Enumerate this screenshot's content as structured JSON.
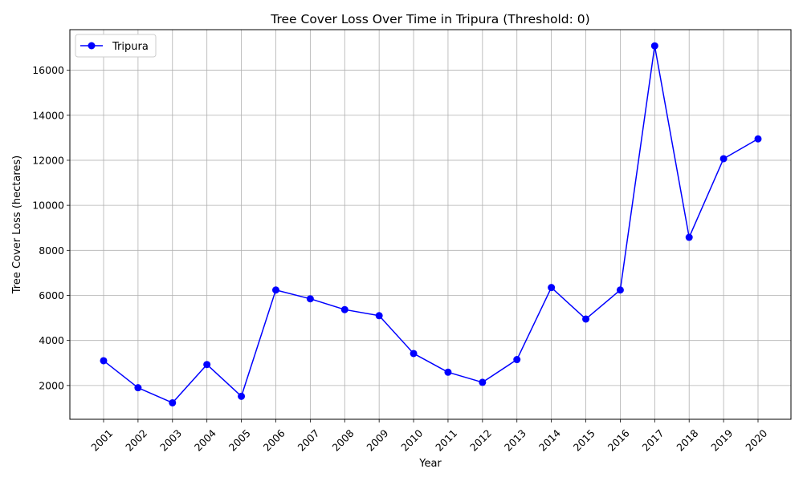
{
  "chart_data": {
    "type": "line",
    "title": "Tree Cover Loss Over Time in Tripura (Threshold: 0)",
    "xlabel": "Year",
    "ylabel": "Tree Cover Loss (hectares)",
    "categories": [
      "2001",
      "2002",
      "2003",
      "2004",
      "2005",
      "2006",
      "2007",
      "2008",
      "2009",
      "2010",
      "2011",
      "2012",
      "2013",
      "2014",
      "2015",
      "2016",
      "2017",
      "2018",
      "2019",
      "2020"
    ],
    "series": [
      {
        "name": "Tripura",
        "color": "#0000ff",
        "marker": "circle",
        "values": [
          3100,
          1900,
          1230,
          2930,
          1520,
          6240,
          5850,
          5370,
          5100,
          3420,
          2590,
          2140,
          3150,
          6350,
          4950,
          6240,
          17080,
          8580,
          12070,
          12950
        ]
      }
    ],
    "ylim": [
      500,
      17800
    ],
    "yticks": [
      2000,
      4000,
      6000,
      8000,
      10000,
      12000,
      14000,
      16000
    ],
    "grid": true,
    "legend_position": "top-left"
  }
}
